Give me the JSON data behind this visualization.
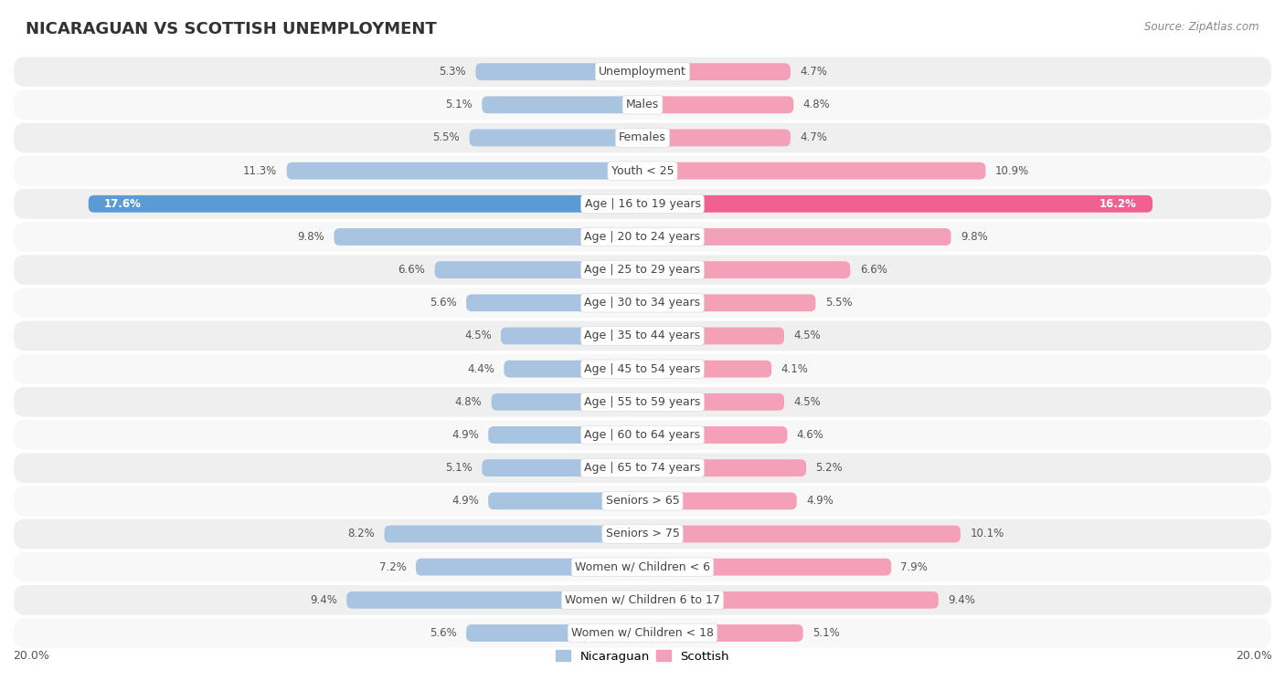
{
  "title": "NICARAGUAN VS SCOTTISH UNEMPLOYMENT",
  "source": "Source: ZipAtlas.com",
  "categories": [
    "Unemployment",
    "Males",
    "Females",
    "Youth < 25",
    "Age | 16 to 19 years",
    "Age | 20 to 24 years",
    "Age | 25 to 29 years",
    "Age | 30 to 34 years",
    "Age | 35 to 44 years",
    "Age | 45 to 54 years",
    "Age | 55 to 59 years",
    "Age | 60 to 64 years",
    "Age | 65 to 74 years",
    "Seniors > 65",
    "Seniors > 75",
    "Women w/ Children < 6",
    "Women w/ Children 6 to 17",
    "Women w/ Children < 18"
  ],
  "nicaraguan": [
    5.3,
    5.1,
    5.5,
    11.3,
    17.6,
    9.8,
    6.6,
    5.6,
    4.5,
    4.4,
    4.8,
    4.9,
    5.1,
    4.9,
    8.2,
    7.2,
    9.4,
    5.6
  ],
  "scottish": [
    4.7,
    4.8,
    4.7,
    10.9,
    16.2,
    9.8,
    6.6,
    5.5,
    4.5,
    4.1,
    4.5,
    4.6,
    5.2,
    4.9,
    10.1,
    7.9,
    9.4,
    5.1
  ],
  "nicaraguan_color": "#a8c4e0",
  "scottish_color": "#f4a0b8",
  "nicaraguan_color_dark": "#5b9bd5",
  "scottish_color_dark": "#f06090",
  "max_val": 20.0,
  "legend_nicaraguan": "Nicaraguan",
  "legend_scottish": "Scottish",
  "row_bg_odd": "#efefef",
  "row_bg_even": "#f8f8f8",
  "label_fontsize": 9.0,
  "value_fontsize": 8.5,
  "title_fontsize": 13,
  "bar_height": 0.52,
  "large_val_threshold": 15.0
}
